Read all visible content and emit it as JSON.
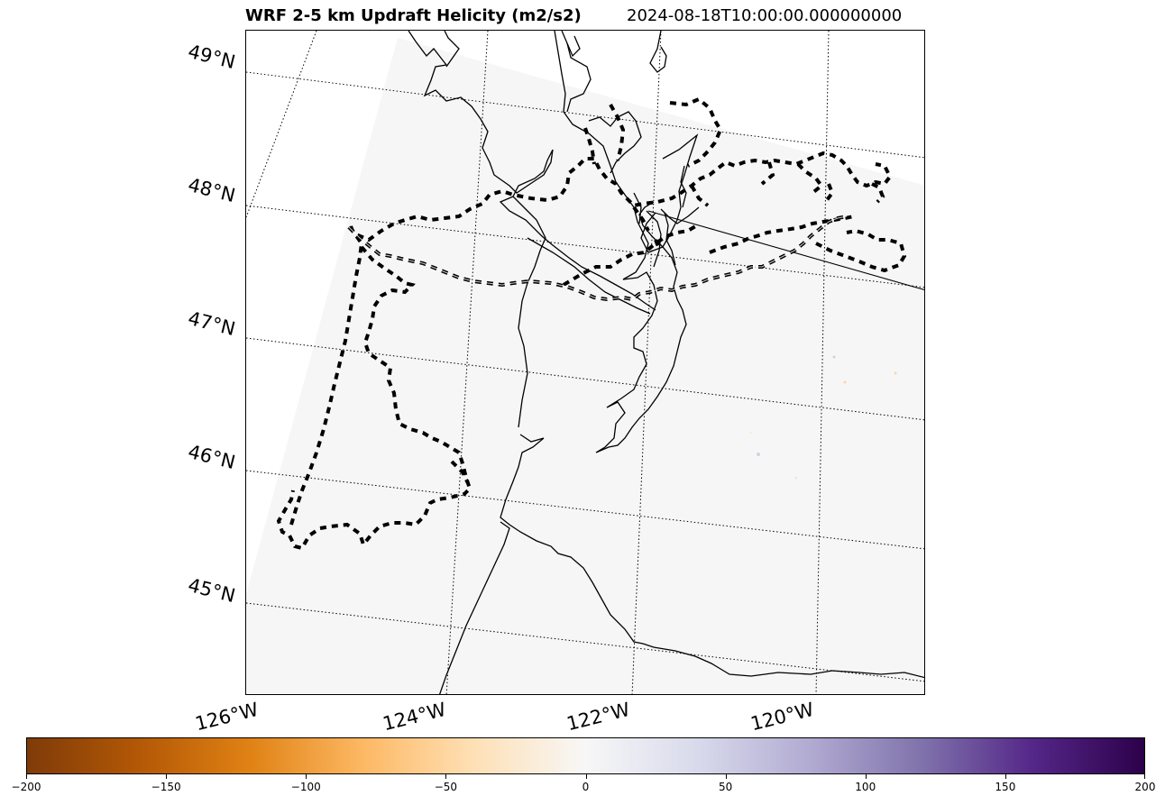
{
  "header": {
    "title": "WRF 2-5 km Updraft Helicity (m2/s2)",
    "timestamp": "2024-08-18T10:00:00.000000000"
  },
  "map": {
    "lat_labels": [
      "49°N",
      "48°N",
      "47°N",
      "46°N",
      "45°N"
    ],
    "lon_labels": [
      "126°W",
      "124°W",
      "122°W",
      "120°W"
    ]
  },
  "colorbar": {
    "colormap": "PuOr",
    "min": -200,
    "max": 200,
    "tick_labels": [
      "−200",
      "−150",
      "−100",
      "−50",
      "0",
      "50",
      "100",
      "150",
      "200"
    ],
    "colors": [
      "#7f3b08",
      "#b35806",
      "#e08214",
      "#fdb863",
      "#fee0b6",
      "#f7f7f7",
      "#d8daeb",
      "#b2abd2",
      "#8073ac",
      "#542788",
      "#2d004b"
    ]
  }
}
